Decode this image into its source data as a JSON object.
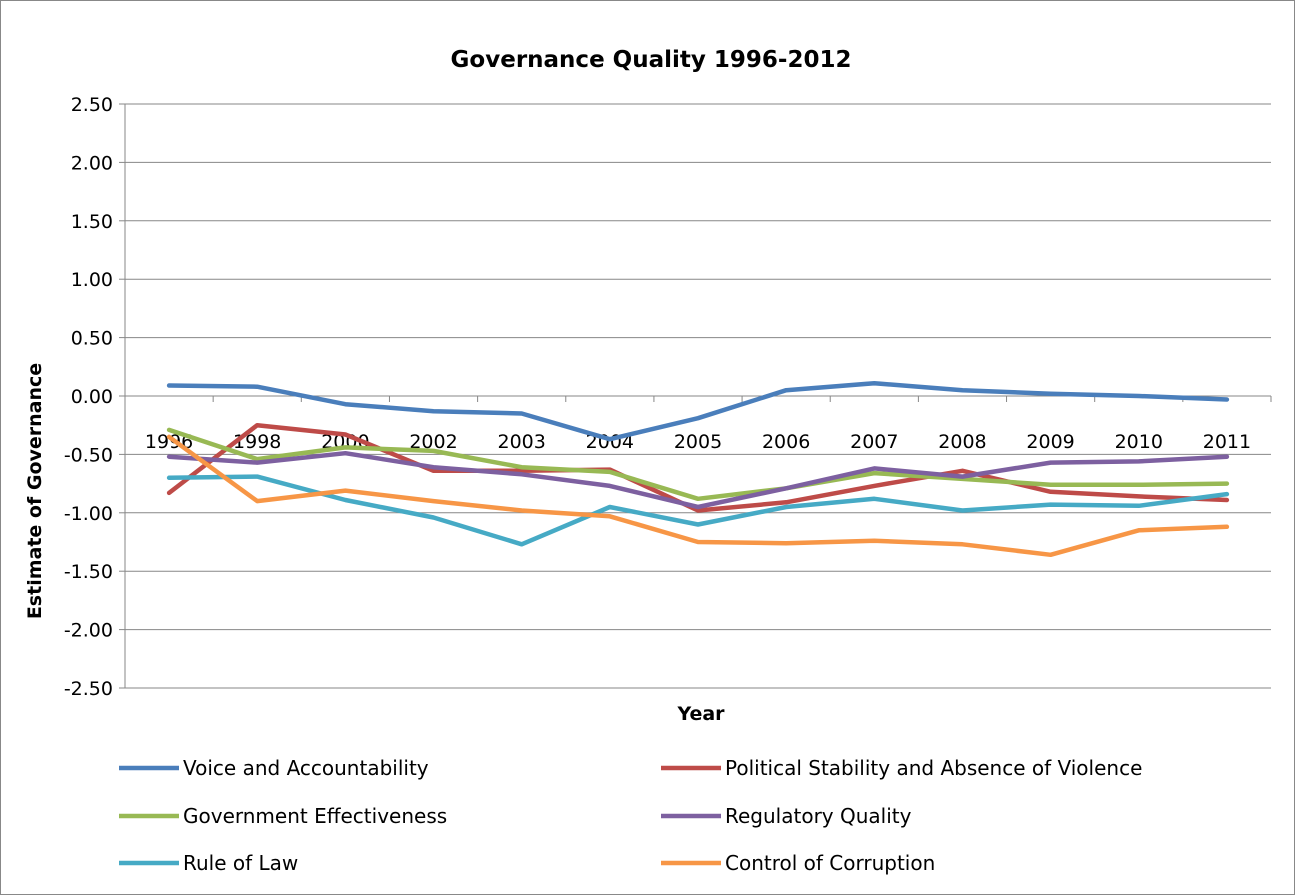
{
  "chart_data": {
    "type": "line",
    "title": "Governance Quality 1996-2012",
    "xlabel": "Year",
    "ylabel": "Estimate of Governance",
    "categories": [
      "1996",
      "1998",
      "2000",
      "2002",
      "2003",
      "2004",
      "2005",
      "2006",
      "2007",
      "2008",
      "2009",
      "2010",
      "2011"
    ],
    "ylim": [
      -2.5,
      2.5
    ],
    "y_ticks": [
      "2.50",
      "2.00",
      "1.50",
      "1.00",
      "0.50",
      "0.00",
      "-0.50",
      "-1.00",
      "-1.50",
      "-2.00",
      "-2.50"
    ],
    "grid": true,
    "legend_position": "bottom",
    "series": [
      {
        "name": "Voice and Accountability",
        "color": "#4a7ebb",
        "values": [
          0.09,
          0.08,
          -0.07,
          -0.13,
          -0.15,
          -0.37,
          -0.19,
          0.05,
          0.11,
          0.05,
          0.02,
          0.0,
          -0.03
        ]
      },
      {
        "name": "Political Stability and Absence of Violence",
        "color": "#be4b48",
        "values": [
          -0.83,
          -0.25,
          -0.33,
          -0.64,
          -0.64,
          -0.63,
          -0.98,
          -0.91,
          -0.77,
          -0.64,
          -0.82,
          -0.86,
          -0.89
        ]
      },
      {
        "name": "Government Effectiveness",
        "color": "#98b954",
        "values": [
          -0.29,
          -0.54,
          -0.44,
          -0.47,
          -0.61,
          -0.65,
          -0.88,
          -0.79,
          -0.66,
          -0.71,
          -0.76,
          -0.76,
          -0.75
        ]
      },
      {
        "name": "Regulatory Quality",
        "color": "#7d60a0",
        "values": [
          -0.52,
          -0.57,
          -0.49,
          -0.61,
          -0.67,
          -0.77,
          -0.95,
          -0.79,
          -0.62,
          -0.69,
          -0.57,
          -0.56,
          -0.52
        ]
      },
      {
        "name": "Rule of Law",
        "color": "#46aac5",
        "values": [
          -0.7,
          -0.69,
          -0.89,
          -1.04,
          -1.27,
          -0.95,
          -1.1,
          -0.95,
          -0.88,
          -0.98,
          -0.93,
          -0.94,
          -0.84
        ]
      },
      {
        "name": "Control of Corruption",
        "color": "#f79646",
        "values": [
          -0.35,
          -0.9,
          -0.81,
          -0.9,
          -0.98,
          -1.03,
          -1.25,
          -1.26,
          -1.24,
          -1.27,
          -1.36,
          -1.15,
          -1.12
        ]
      }
    ]
  }
}
